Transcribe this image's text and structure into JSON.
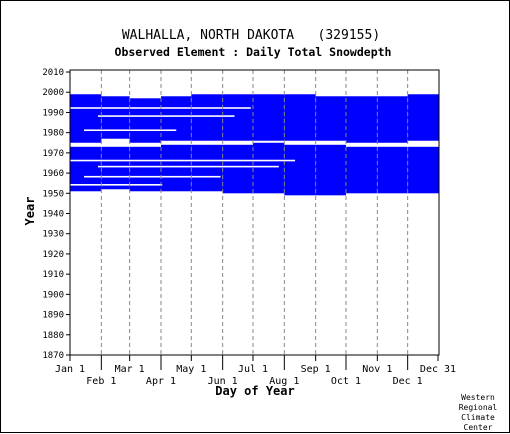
{
  "chart_data": {
    "type": "table",
    "title": "WALHALLA, NORTH DAKOTA   (329155)",
    "subtitle": "Observed Element : Daily Total Snowdepth",
    "xlabel": "Day of Year",
    "ylabel": "Year",
    "xlim": [
      1,
      366
    ],
    "ylim": [
      1870,
      2011
    ],
    "yticks": [
      1870,
      1880,
      1890,
      1900,
      1910,
      1920,
      1930,
      1940,
      1950,
      1960,
      1970,
      1980,
      1990,
      2000,
      2010
    ],
    "xticks_top_row": [
      {
        "label": "Jan 1",
        "day": 1
      },
      {
        "label": "Mar 1",
        "day": 60
      },
      {
        "label": "May 1",
        "day": 121
      },
      {
        "label": "Jul 1",
        "day": 182
      },
      {
        "label": "Sep 1",
        "day": 244
      },
      {
        "label": "Nov 1",
        "day": 305
      },
      {
        "label": "Dec 31",
        "day": 365
      }
    ],
    "xticks_bottom_row": [
      {
        "label": "Feb 1",
        "day": 32
      },
      {
        "label": "Apr 1",
        "day": 91
      },
      {
        "label": "Jun 1",
        "day": 152
      },
      {
        "label": "Aug 1",
        "day": 213
      },
      {
        "label": "Oct 1",
        "day": 274
      },
      {
        "label": "Dec 1",
        "day": 335
      }
    ],
    "grid": true,
    "data_color": "#0000ff",
    "coverage": {
      "description": "Daily records present (blue) by year and day",
      "blocks": [
        {
          "days": [
            1,
            32
          ],
          "years": [
            [
              1951,
              1972
            ],
            [
              1975,
              1998
            ]
          ]
        },
        {
          "days": [
            32,
            60
          ],
          "years": [
            [
              1952,
              1972
            ],
            [
              1977,
              1997
            ]
          ]
        },
        {
          "days": [
            60,
            91
          ],
          "years": [
            [
              1951,
              1972
            ],
            [
              1975,
              1996
            ]
          ]
        },
        {
          "days": [
            91,
            121
          ],
          "years": [
            [
              1951,
              1973
            ],
            [
              1976,
              1997
            ]
          ]
        },
        {
          "days": [
            121,
            152
          ],
          "years": [
            [
              1951,
              1973
            ],
            [
              1976,
              1998
            ]
          ]
        },
        {
          "days": [
            152,
            182
          ],
          "years": [
            [
              1950,
              1973
            ],
            [
              1976,
              1998
            ]
          ]
        },
        {
          "days": [
            182,
            213
          ],
          "years": [
            [
              1950,
              1974
            ],
            [
              1976,
              1998
            ]
          ]
        },
        {
          "days": [
            213,
            244
          ],
          "years": [
            [
              1949,
              1973
            ],
            [
              1976,
              1998
            ]
          ]
        },
        {
          "days": [
            244,
            274
          ],
          "years": [
            [
              1949,
              1973
            ],
            [
              1976,
              1997
            ]
          ]
        },
        {
          "days": [
            274,
            305
          ],
          "years": [
            [
              1950,
              1972
            ],
            [
              1975,
              1997
            ]
          ]
        },
        {
          "days": [
            305,
            335
          ],
          "years": [
            [
              1950,
              1972
            ],
            [
              1975,
              1997
            ]
          ]
        },
        {
          "days": [
            335,
            366
          ],
          "years": [
            [
              1950,
              1972
            ],
            [
              1976,
              1998
            ]
          ]
        }
      ],
      "missing_years": [
        1954,
        1958,
        1963,
        1966,
        1981,
        1988,
        1992
      ]
    }
  },
  "credit": [
    "Western",
    "Regional",
    "Climate",
    "Center"
  ]
}
